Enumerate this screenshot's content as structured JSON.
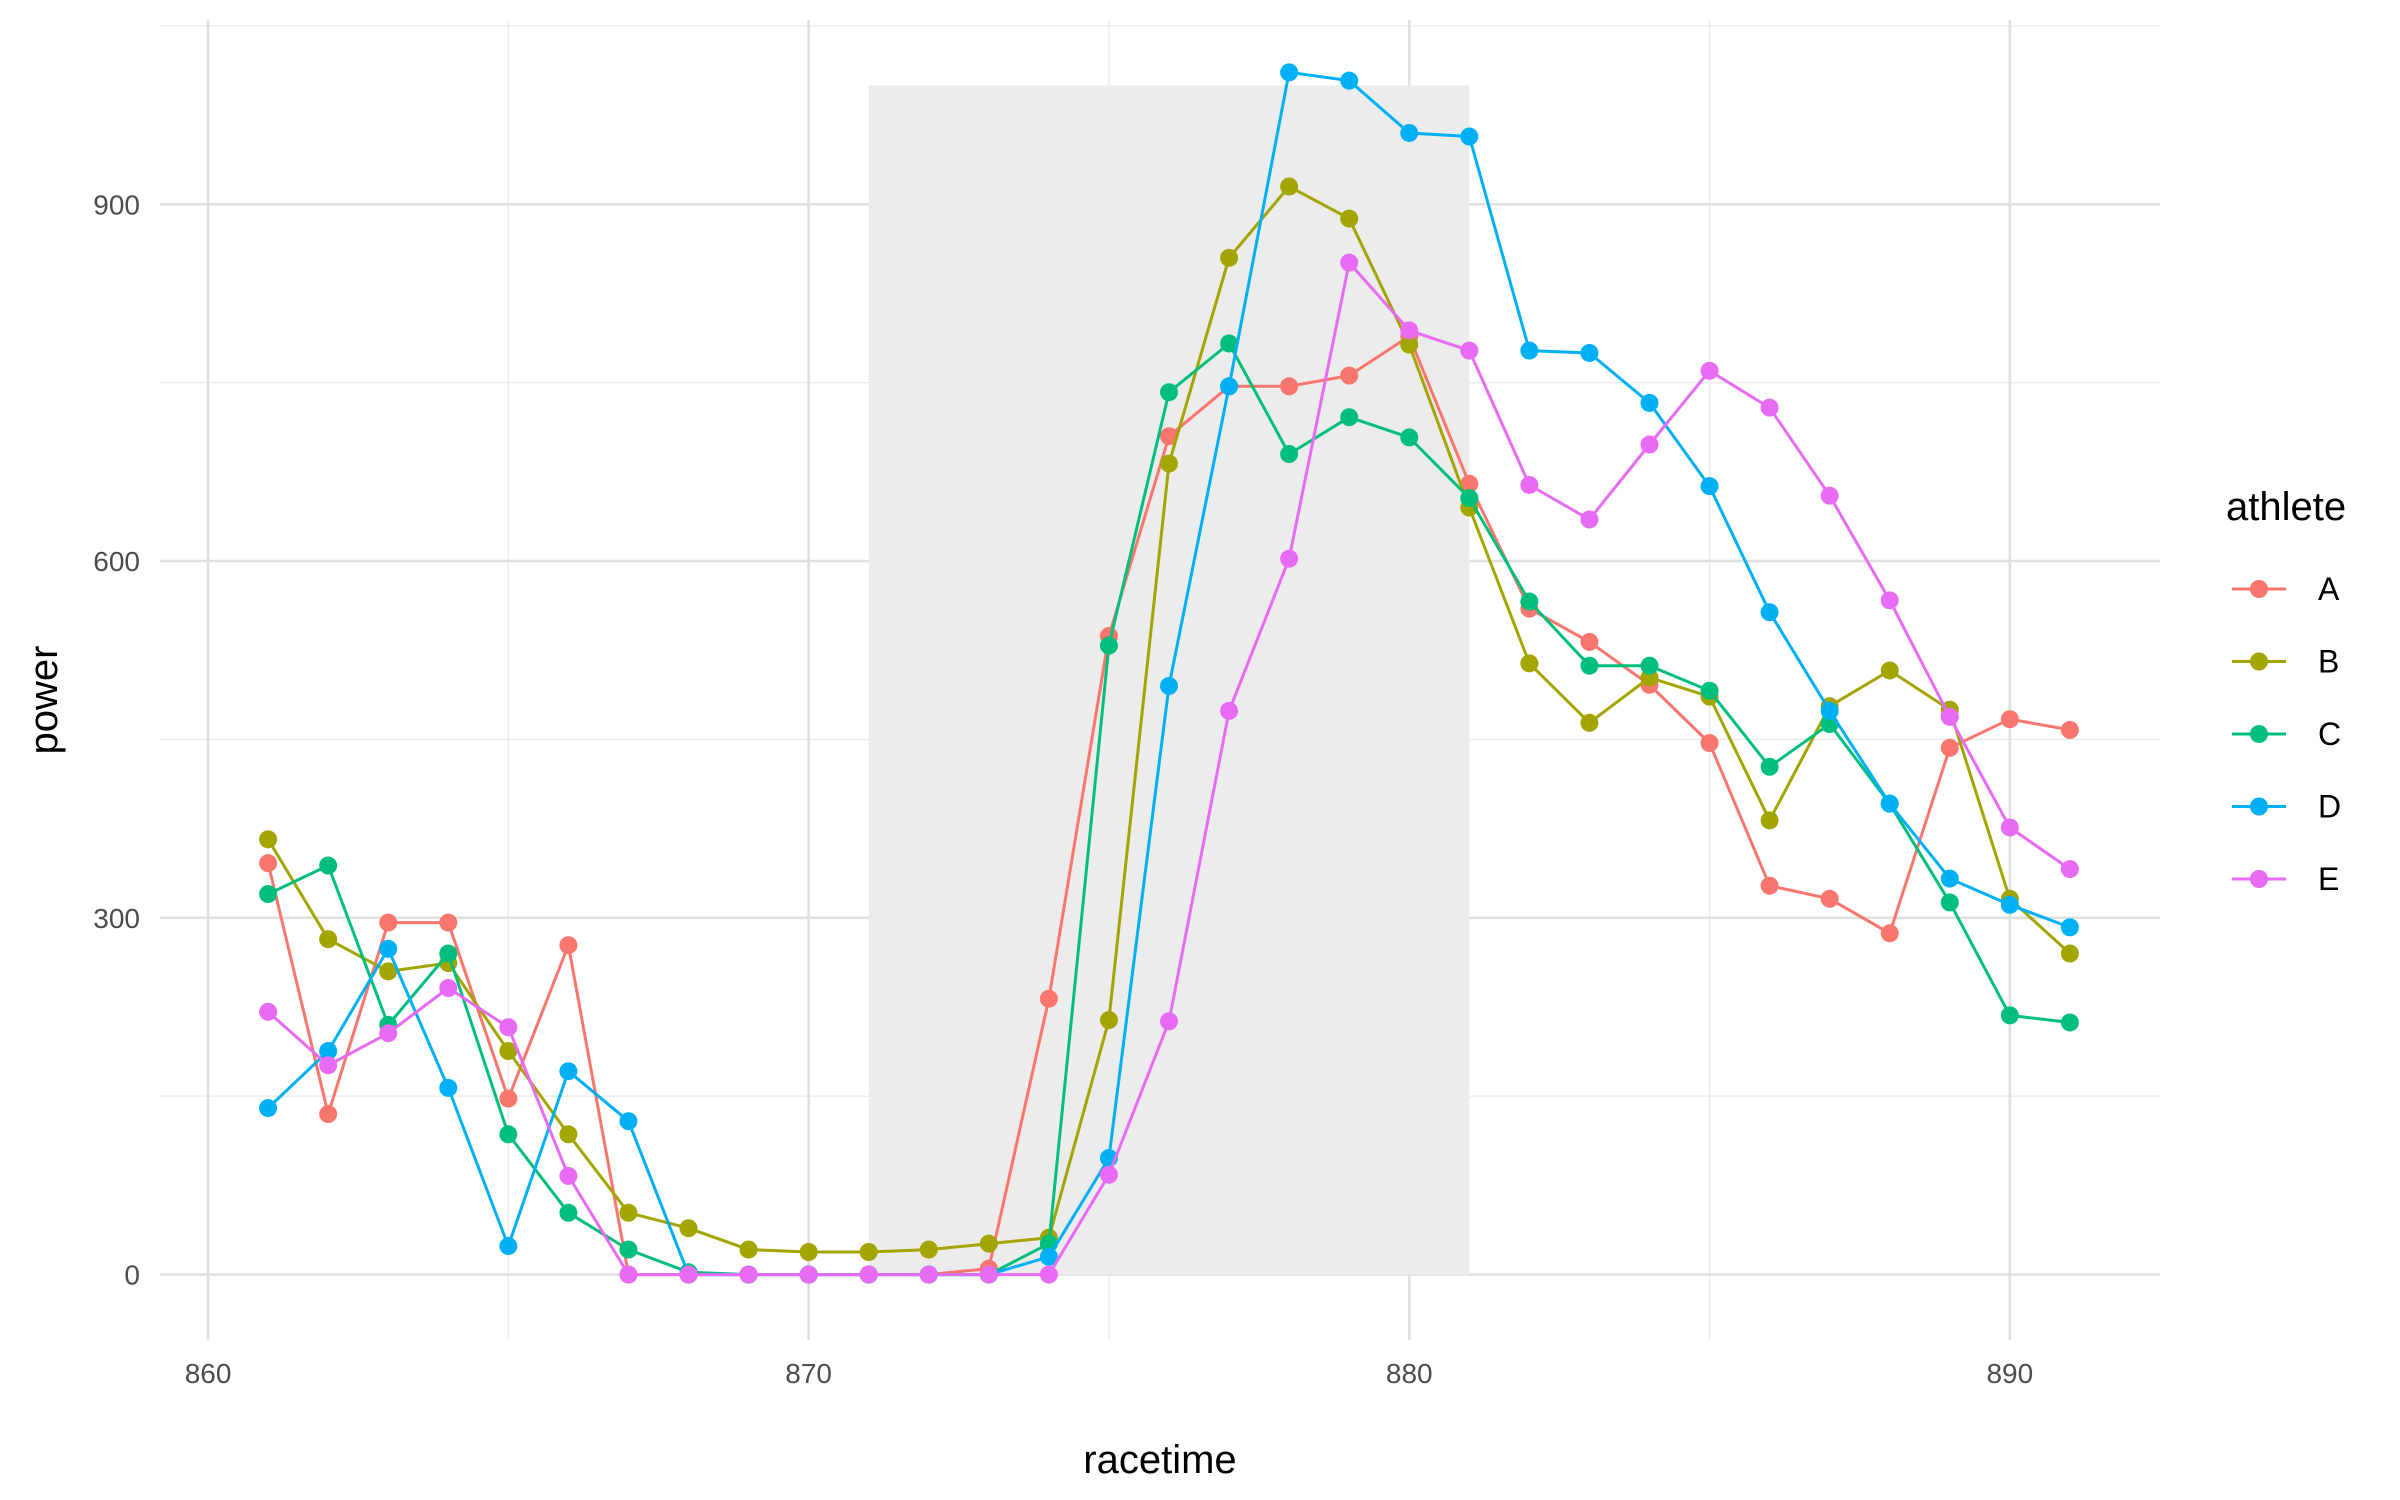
{
  "chart_data": {
    "type": "line",
    "xlabel": "racetime",
    "ylabel": "power",
    "xlim": [
      859.2,
      892.5
    ],
    "ylim": [
      -55,
      1055
    ],
    "x_ticks": [
      860,
      870,
      880,
      890
    ],
    "y_ticks": [
      0,
      300,
      600,
      900
    ],
    "grid": true,
    "shaded_region": {
      "x": [
        871,
        881
      ],
      "y": [
        0,
        1000
      ],
      "color": "#ebebeb"
    },
    "legend_title": "athlete",
    "legend_position": "right",
    "x": [
      861,
      862,
      863,
      864,
      865,
      866,
      867,
      868,
      869,
      870,
      871,
      872,
      873,
      874,
      875,
      876,
      877,
      878,
      879,
      880,
      881,
      882,
      883,
      884,
      885,
      886,
      887,
      888,
      889,
      890,
      891
    ],
    "series": [
      {
        "name": "A",
        "color": "#F8766D",
        "values": [
          346,
          135,
          296,
          296,
          148,
          277,
          0,
          0,
          0,
          0,
          0,
          0,
          5,
          232,
          537,
          705,
          747,
          747,
          756,
          789,
          665,
          560,
          532,
          496,
          447,
          327,
          316,
          287,
          443,
          467,
          458
        ]
      },
      {
        "name": "B",
        "color": "#A3A500",
        "values": [
          366,
          282,
          255,
          262,
          188,
          118,
          52,
          39,
          21,
          19,
          19,
          21,
          26,
          31,
          214,
          682,
          855,
          915,
          888,
          782,
          645,
          514,
          464,
          502,
          486,
          382,
          478,
          508,
          475,
          316,
          270
        ]
      },
      {
        "name": "C",
        "color": "#00BF7D",
        "values": [
          320,
          344,
          210,
          270,
          118,
          52,
          21,
          2,
          0,
          0,
          0,
          0,
          0,
          26,
          529,
          742,
          783,
          690,
          721,
          704,
          653,
          566,
          512,
          512,
          491,
          427,
          463,
          396,
          313,
          218,
          212
        ]
      },
      {
        "name": "D",
        "color": "#00B0F6",
        "values": [
          140,
          188,
          274,
          157,
          24,
          171,
          129,
          0,
          0,
          0,
          0,
          0,
          0,
          15,
          98,
          495,
          747,
          1011,
          1004,
          960,
          957,
          777,
          775,
          733,
          663,
          557,
          474,
          396,
          333,
          311,
          292
        ]
      },
      {
        "name": "E",
        "color": "#E76BF3",
        "values": [
          221,
          176,
          203,
          241,
          208,
          83,
          0,
          0,
          0,
          0,
          0,
          0,
          0,
          0,
          84,
          213,
          474,
          602,
          851,
          794,
          777,
          664,
          635,
          698,
          760,
          729,
          655,
          567,
          469,
          376,
          341
        ]
      }
    ]
  }
}
